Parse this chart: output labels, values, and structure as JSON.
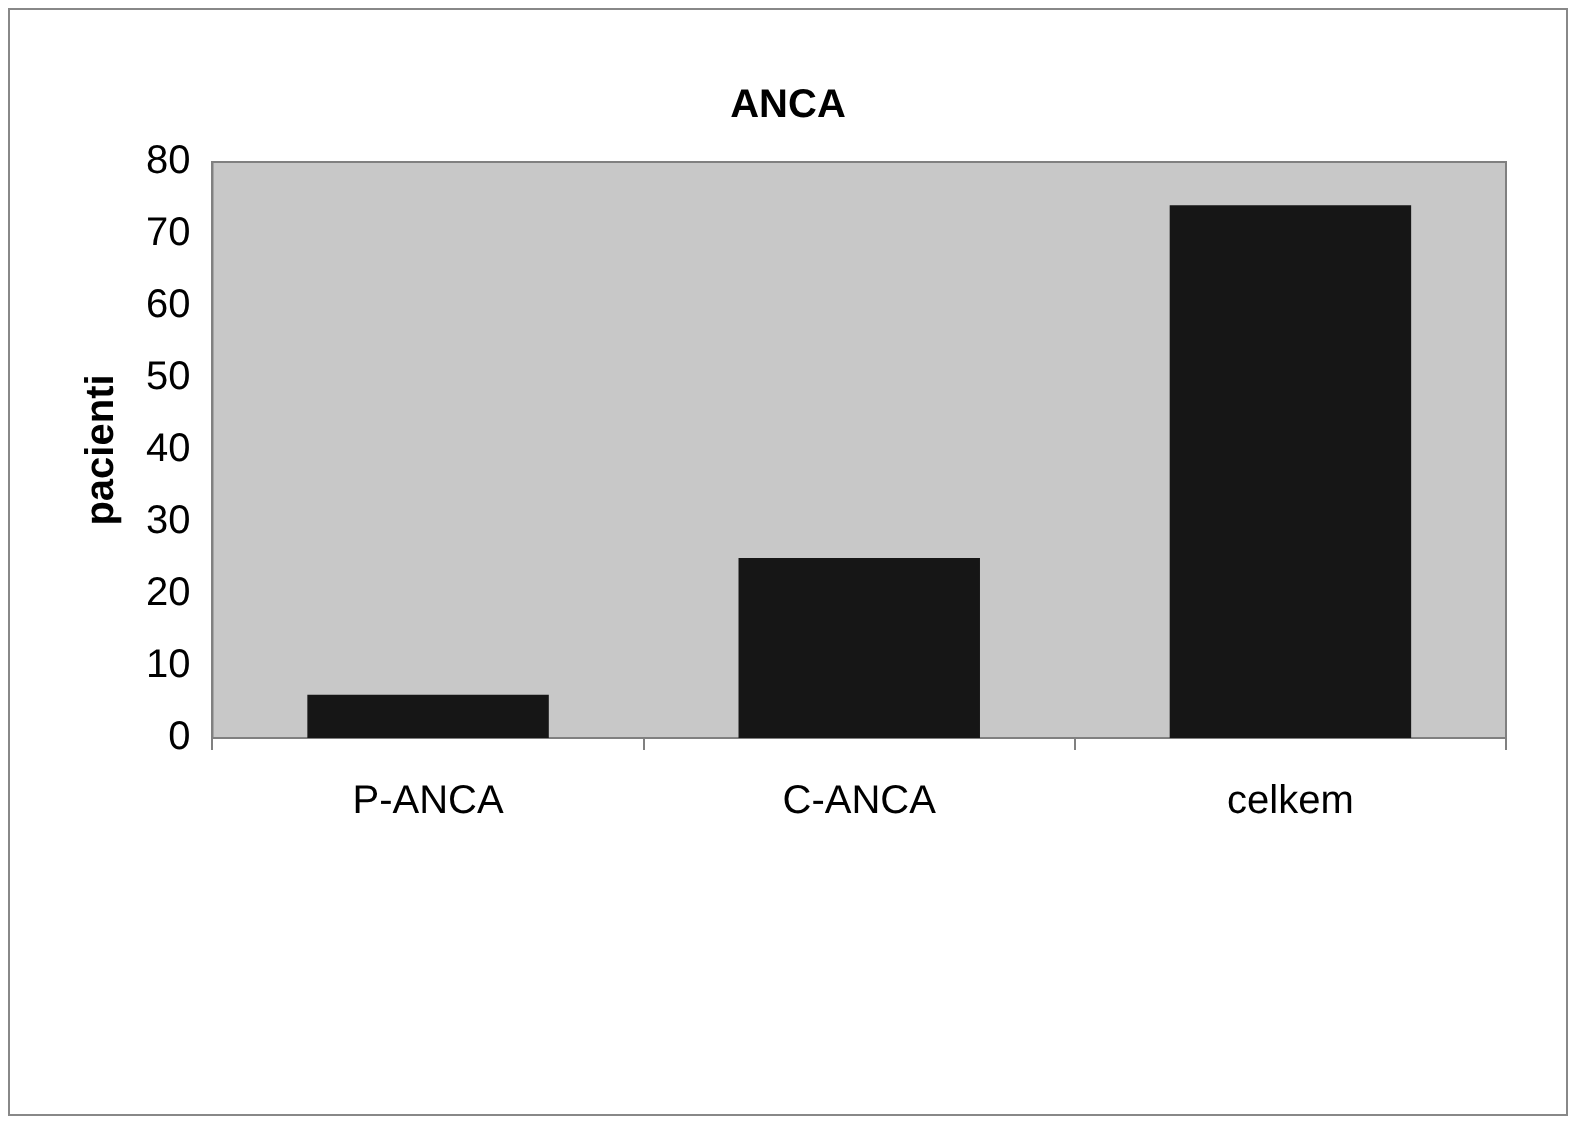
{
  "chart_data": {
    "type": "bar",
    "title": "ANCA",
    "ylabel": "pacienti",
    "categories": [
      "P-ANCA",
      "C-ANCA",
      "celkem"
    ],
    "values": [
      6,
      25,
      74
    ],
    "color": "#161616",
    "ylim": [
      0,
      80
    ],
    "yticks": [
      0,
      10,
      20,
      30,
      40,
      50,
      60,
      70,
      80
    ],
    "grid": false,
    "legend": false
  }
}
